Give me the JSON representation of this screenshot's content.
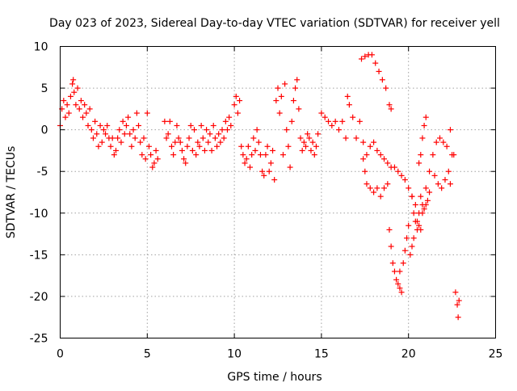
{
  "chart_data": {
    "type": "scatter",
    "title": "Day 023 of 2023, Sidereal Day-to-day VTEC variation (SDTVAR) for receiver yell",
    "xlabel": "GPS time / hours",
    "ylabel": "SDTVAR / TECUs",
    "xlim": [
      0,
      25
    ],
    "ylim": [
      -25,
      10
    ],
    "xticks": [
      "0",
      "5",
      "10",
      "15",
      "20",
      "25"
    ],
    "yticks": [
      "-25",
      "-20",
      "-15",
      "-10",
      "-5",
      "0",
      "5",
      "10"
    ],
    "grid": true,
    "marker": "+",
    "color": "#ff0000",
    "series": [
      {
        "points": [
          [
            0.0,
            0.5
          ],
          [
            0.1,
            2.5
          ],
          [
            0.2,
            3.5
          ],
          [
            0.3,
            1.5
          ],
          [
            0.4,
            3.0
          ],
          [
            0.5,
            2.0
          ],
          [
            0.6,
            4.0
          ],
          [
            0.7,
            5.5
          ],
          [
            0.75,
            6.0
          ],
          [
            0.8,
            4.5
          ],
          [
            0.9,
            3.0
          ],
          [
            1.0,
            5.0
          ],
          [
            1.1,
            2.5
          ],
          [
            1.2,
            3.5
          ],
          [
            1.3,
            1.5
          ],
          [
            1.4,
            3.0
          ],
          [
            1.5,
            2.0
          ],
          [
            1.6,
            0.5
          ],
          [
            1.7,
            2.5
          ],
          [
            1.8,
            0.0
          ],
          [
            1.9,
            -1.0
          ],
          [
            2.0,
            1.0
          ],
          [
            2.1,
            -0.5
          ],
          [
            2.2,
            -2.0
          ],
          [
            2.3,
            0.5
          ],
          [
            2.4,
            -1.5
          ],
          [
            2.5,
            0.0
          ],
          [
            2.6,
            -0.5
          ],
          [
            2.7,
            0.5
          ],
          [
            2.8,
            -1.0
          ],
          [
            2.9,
            -2.0
          ],
          [
            3.0,
            -1.0
          ],
          [
            3.1,
            -3.0
          ],
          [
            3.2,
            -2.5
          ],
          [
            3.3,
            -1.0
          ],
          [
            3.4,
            0.0
          ],
          [
            3.5,
            -1.5
          ],
          [
            3.6,
            1.0
          ],
          [
            3.7,
            -0.5
          ],
          [
            3.8,
            0.5
          ],
          [
            3.9,
            1.5
          ],
          [
            4.0,
            -0.5
          ],
          [
            4.1,
            -2.0
          ],
          [
            4.2,
            0.0
          ],
          [
            4.3,
            -1.0
          ],
          [
            4.4,
            2.0
          ],
          [
            4.5,
            0.5
          ],
          [
            4.6,
            -1.5
          ],
          [
            4.7,
            -3.0
          ],
          [
            4.8,
            -1.0
          ],
          [
            4.9,
            -3.5
          ],
          [
            5.0,
            2.0
          ],
          [
            5.1,
            -2.0
          ],
          [
            5.2,
            -3.0
          ],
          [
            5.3,
            -4.5
          ],
          [
            5.4,
            -4.0
          ],
          [
            5.5,
            -2.5
          ],
          [
            5.6,
            -3.5
          ],
          [
            6.0,
            1.0
          ],
          [
            6.1,
            -1.0
          ],
          [
            6.2,
            -0.5
          ],
          [
            6.3,
            1.0
          ],
          [
            6.4,
            -2.0
          ],
          [
            6.5,
            -3.0
          ],
          [
            6.6,
            -1.5
          ],
          [
            6.7,
            0.5
          ],
          [
            6.8,
            -1.0
          ],
          [
            6.9,
            -1.5
          ],
          [
            7.0,
            -2.5
          ],
          [
            7.1,
            -3.5
          ],
          [
            7.2,
            -4.0
          ],
          [
            7.3,
            -2.0
          ],
          [
            7.4,
            -1.0
          ],
          [
            7.5,
            0.5
          ],
          [
            7.6,
            -2.5
          ],
          [
            7.7,
            0.0
          ],
          [
            7.8,
            -3.0
          ],
          [
            7.9,
            -1.5
          ],
          [
            8.0,
            -2.0
          ],
          [
            8.1,
            0.5
          ],
          [
            8.2,
            -1.0
          ],
          [
            8.3,
            -2.5
          ],
          [
            8.4,
            0.0
          ],
          [
            8.5,
            -1.5
          ],
          [
            8.6,
            -0.5
          ],
          [
            8.7,
            -2.5
          ],
          [
            8.8,
            0.5
          ],
          [
            8.9,
            -1.0
          ],
          [
            9.0,
            -2.0
          ],
          [
            9.1,
            -0.5
          ],
          [
            9.2,
            -1.5
          ],
          [
            9.3,
            0.0
          ],
          [
            9.4,
            -1.0
          ],
          [
            9.5,
            1.0
          ],
          [
            9.6,
            0.0
          ],
          [
            9.7,
            1.5
          ],
          [
            9.8,
            0.5
          ],
          [
            10.0,
            3.0
          ],
          [
            10.1,
            4.0
          ],
          [
            10.2,
            2.0
          ],
          [
            10.3,
            3.5
          ],
          [
            10.4,
            -2.0
          ],
          [
            10.5,
            -3.0
          ],
          [
            10.6,
            -4.0
          ],
          [
            10.7,
            -3.5
          ],
          [
            10.8,
            -2.0
          ],
          [
            10.9,
            -4.5
          ],
          [
            11.0,
            -3.0
          ],
          [
            11.1,
            -1.0
          ],
          [
            11.2,
            -2.5
          ],
          [
            11.3,
            0.0
          ],
          [
            11.4,
            -1.5
          ],
          [
            11.5,
            -3.0
          ],
          [
            11.6,
            -5.0
          ],
          [
            11.7,
            -5.5
          ],
          [
            11.8,
            -3.0
          ],
          [
            11.9,
            -2.0
          ],
          [
            12.0,
            -5.0
          ],
          [
            12.1,
            -4.0
          ],
          [
            12.2,
            -2.5
          ],
          [
            12.3,
            -6.0
          ],
          [
            12.4,
            3.5
          ],
          [
            12.5,
            5.0
          ],
          [
            12.6,
            2.0
          ],
          [
            12.7,
            4.0
          ],
          [
            12.8,
            -3.0
          ],
          [
            12.9,
            5.5
          ],
          [
            13.0,
            0.0
          ],
          [
            13.1,
            -2.0
          ],
          [
            13.2,
            -4.5
          ],
          [
            13.3,
            1.0
          ],
          [
            13.4,
            3.5
          ],
          [
            13.5,
            5.0
          ],
          [
            13.6,
            6.0
          ],
          [
            13.7,
            2.5
          ],
          [
            13.8,
            -1.0
          ],
          [
            13.9,
            -2.5
          ],
          [
            14.0,
            -1.5
          ],
          [
            14.1,
            -2.0
          ],
          [
            14.2,
            -0.5
          ],
          [
            14.3,
            -1.0
          ],
          [
            14.4,
            -2.5
          ],
          [
            14.5,
            -1.5
          ],
          [
            14.6,
            -3.0
          ],
          [
            14.7,
            -2.0
          ],
          [
            14.8,
            -0.5
          ],
          [
            15.0,
            2.0
          ],
          [
            15.2,
            1.5
          ],
          [
            15.4,
            1.0
          ],
          [
            15.6,
            0.5
          ],
          [
            15.8,
            1.0
          ],
          [
            16.0,
            0.0
          ],
          [
            16.2,
            1.0
          ],
          [
            16.4,
            -1.0
          ],
          [
            16.5,
            4.0
          ],
          [
            16.6,
            3.0
          ],
          [
            16.8,
            1.5
          ],
          [
            17.0,
            -1.0
          ],
          [
            17.2,
            1.0
          ],
          [
            17.4,
            -1.5
          ],
          [
            17.6,
            -3.0
          ],
          [
            17.8,
            -2.0
          ],
          [
            18.0,
            -1.5
          ],
          [
            18.2,
            -2.5
          ],
          [
            18.4,
            -3.0
          ],
          [
            18.6,
            -3.5
          ],
          [
            18.8,
            -4.0
          ],
          [
            19.0,
            -4.5
          ],
          [
            19.2,
            -4.5
          ],
          [
            19.4,
            -5.0
          ],
          [
            19.6,
            -5.5
          ],
          [
            19.8,
            -6.0
          ],
          [
            20.0,
            -7.0
          ],
          [
            20.2,
            -8.0
          ],
          [
            20.4,
            -9.0
          ],
          [
            20.5,
            -12.0
          ],
          [
            20.6,
            -10.0
          ],
          [
            20.7,
            -8.0
          ],
          [
            20.8,
            -9.0
          ],
          [
            21.0,
            -7.0
          ],
          [
            21.2,
            -5.0
          ],
          [
            21.4,
            -3.0
          ],
          [
            21.6,
            -1.5
          ],
          [
            21.8,
            -1.0
          ],
          [
            22.0,
            -1.5
          ],
          [
            22.2,
            -2.0
          ],
          [
            22.4,
            0.0
          ],
          [
            22.5,
            -3.0
          ],
          [
            17.4,
            -3.5
          ],
          [
            17.5,
            -5.0
          ],
          [
            17.6,
            -6.5
          ],
          [
            17.8,
            -7.0
          ],
          [
            18.0,
            -7.5
          ],
          [
            18.2,
            -7.0
          ],
          [
            18.4,
            -8.0
          ],
          [
            18.6,
            -7.0
          ],
          [
            18.8,
            -6.5
          ],
          [
            17.3,
            8.5
          ],
          [
            17.5,
            8.8
          ],
          [
            17.7,
            9.0
          ],
          [
            17.9,
            9.0
          ],
          [
            18.1,
            8.0
          ],
          [
            18.3,
            7.0
          ],
          [
            18.5,
            6.0
          ],
          [
            18.7,
            5.0
          ],
          [
            18.9,
            3.0
          ],
          [
            19.0,
            2.5
          ],
          [
            18.9,
            -12.0
          ],
          [
            19.0,
            -14.0
          ],
          [
            19.1,
            -16.0
          ],
          [
            19.2,
            -17.0
          ],
          [
            19.3,
            -18.0
          ],
          [
            19.4,
            -18.5
          ],
          [
            19.5,
            -19.0
          ],
          [
            19.6,
            -19.5
          ],
          [
            19.5,
            -17.0
          ],
          [
            19.7,
            -16.0
          ],
          [
            19.8,
            -14.5
          ],
          [
            19.9,
            -13.0
          ],
          [
            20.0,
            -11.5
          ],
          [
            20.1,
            -15.0
          ],
          [
            20.2,
            -14.0
          ],
          [
            20.3,
            -13.0
          ],
          [
            20.5,
            -11.0
          ],
          [
            20.6,
            -11.5
          ],
          [
            20.7,
            -12.0
          ],
          [
            20.8,
            -10.0
          ],
          [
            20.9,
            -9.5
          ],
          [
            21.0,
            -9.0
          ],
          [
            21.1,
            -8.5
          ],
          [
            21.2,
            -7.5
          ],
          [
            20.2,
            -8.0
          ],
          [
            20.3,
            -10.0
          ],
          [
            20.4,
            -11.0
          ],
          [
            20.6,
            -4.0
          ],
          [
            20.7,
            -3.0
          ],
          [
            20.8,
            -1.0
          ],
          [
            20.9,
            0.5
          ],
          [
            21.0,
            1.5
          ],
          [
            21.5,
            -5.5
          ],
          [
            21.7,
            -6.5
          ],
          [
            21.9,
            -7.0
          ],
          [
            22.1,
            -6.0
          ],
          [
            22.3,
            -5.0
          ],
          [
            22.4,
            -6.5
          ],
          [
            22.6,
            -3.0
          ],
          [
            22.7,
            -19.5
          ],
          [
            22.8,
            -21.0
          ],
          [
            22.85,
            -22.5
          ],
          [
            22.9,
            -20.5
          ]
        ]
      }
    ]
  }
}
